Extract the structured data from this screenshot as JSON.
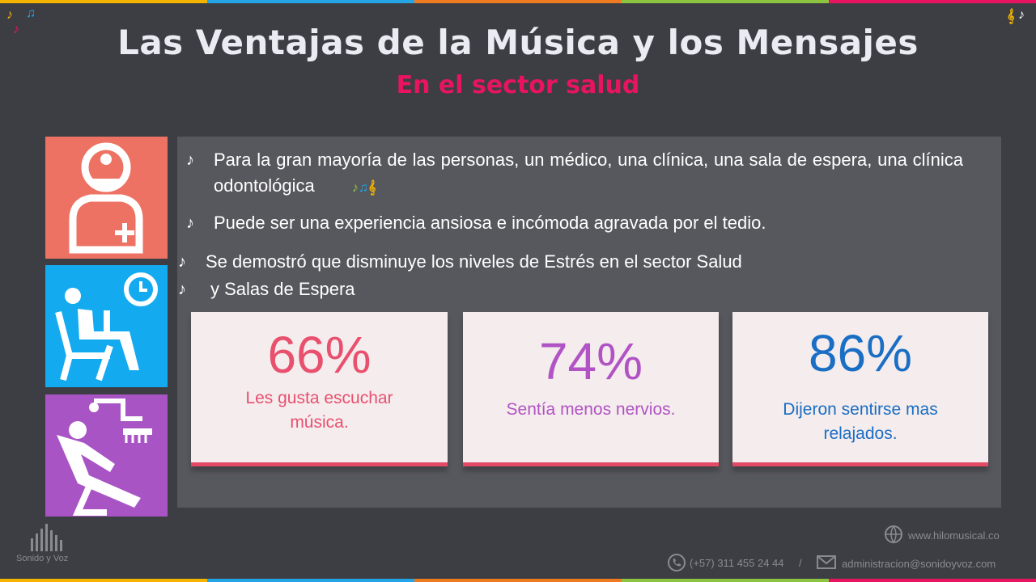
{
  "header": {
    "title": "Las Ventajas de la Música y los Mensajes",
    "subtitle": "En el sector salud"
  },
  "colors": {
    "background": "#3d3e44",
    "title": "#e9ecf2",
    "subtitle": "#e8145f",
    "panel": "#57585e",
    "tile_doctor": "#ed7263",
    "tile_waiting": "#14aaf0",
    "tile_dental": "#a954c4",
    "card_border": "#e44a66"
  },
  "icons": [
    "music-note-icon",
    "doctor-icon",
    "waiting-room-icon",
    "dental-chair-icon",
    "phone-icon",
    "mail-icon",
    "globe-icon",
    "sound-bars-logo"
  ],
  "bullets": {
    "b1": "Para la gran mayoría de las personas, un médico, una clínica, una sala de espera, una clínica odontológica",
    "b2": "Puede ser una experiencia ansiosa e incómoda agravada por el tedio.",
    "b3": "Se demostró que disminuye los niveles de Estrés en el sector Salud",
    "b4": "y Salas de Espera"
  },
  "stats": [
    {
      "value": "66%",
      "label": "Les gusta escuchar música.",
      "color": "#e8506e"
    },
    {
      "value": "74%",
      "label": "Sentía menos nervios.",
      "color": "#b153c4"
    },
    {
      "value": "86%",
      "label": "Dijeron sentirse mas relajados.",
      "color": "#1a6ec4"
    }
  ],
  "footer": {
    "brand": "Sonido y Voz",
    "website": "www.hilomusical.co",
    "phone": "(+57) 311 455 24 44",
    "separator": "/",
    "email": "administracion@sonidoyvoz.com"
  }
}
